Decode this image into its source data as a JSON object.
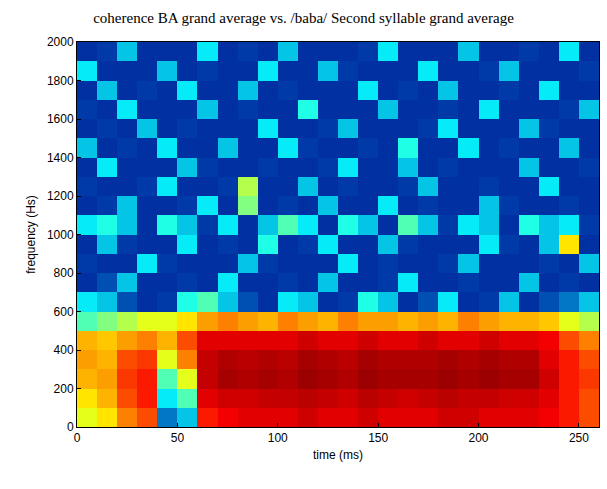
{
  "chart_data": {
    "type": "heatmap",
    "title": "coherence BA grand average vs. /baba/ Second syllable grand average",
    "x_label": "time (ms)",
    "y_label": "frequency (Hs)",
    "color": "Jet",
    "zlim": [
      0,
      1
    ],
    "xlim": [
      0,
      260
    ],
    "ylim": [
      0,
      2000
    ],
    "xticks": [
      0,
      50,
      100,
      150,
      200,
      250
    ],
    "yticks": [
      0,
      200,
      400,
      600,
      800,
      1000,
      1200,
      1400,
      1600,
      1800,
      2000
    ],
    "x": [
      5,
      15,
      25,
      35,
      45,
      55,
      65,
      75,
      85,
      95,
      105,
      115,
      125,
      135,
      145,
      155,
      165,
      175,
      185,
      195,
      205,
      215,
      225,
      235,
      245,
      255
    ],
    "y": [
      50,
      150,
      250,
      350,
      450,
      550,
      650,
      750,
      850,
      950,
      1050,
      1150,
      1250,
      1350,
      1450,
      1550,
      1650,
      1750,
      1850,
      1950
    ],
    "z": [
      [
        0.6,
        0.65,
        0.75,
        0.8,
        0.2,
        0.3,
        0.85,
        0.88,
        0.9,
        0.9,
        0.9,
        0.92,
        0.9,
        0.9,
        0.92,
        0.9,
        0.9,
        0.9,
        0.92,
        0.92,
        0.9,
        0.9,
        0.9,
        0.88,
        0.85,
        0.8
      ],
      [
        0.65,
        0.7,
        0.8,
        0.85,
        0.35,
        0.45,
        0.9,
        0.92,
        0.92,
        0.93,
        0.93,
        0.94,
        0.93,
        0.92,
        0.94,
        0.93,
        0.92,
        0.93,
        0.94,
        0.93,
        0.93,
        0.92,
        0.92,
        0.9,
        0.85,
        0.8
      ],
      [
        0.7,
        0.72,
        0.82,
        0.85,
        0.45,
        0.6,
        0.93,
        0.96,
        0.95,
        0.96,
        0.95,
        0.97,
        0.96,
        0.95,
        0.97,
        0.96,
        0.96,
        0.96,
        0.97,
        0.96,
        0.97,
        0.96,
        0.96,
        0.92,
        0.85,
        0.82
      ],
      [
        0.72,
        0.7,
        0.8,
        0.82,
        0.6,
        0.75,
        0.93,
        0.95,
        0.94,
        0.95,
        0.94,
        0.96,
        0.95,
        0.94,
        0.96,
        0.95,
        0.95,
        0.95,
        0.96,
        0.95,
        0.96,
        0.95,
        0.95,
        0.9,
        0.85,
        0.8
      ],
      [
        0.7,
        0.68,
        0.72,
        0.75,
        0.7,
        0.8,
        0.9,
        0.9,
        0.9,
        0.9,
        0.9,
        0.92,
        0.9,
        0.9,
        0.92,
        0.9,
        0.9,
        0.92,
        0.9,
        0.9,
        0.92,
        0.9,
        0.9,
        0.88,
        0.8,
        0.75
      ],
      [
        0.45,
        0.5,
        0.55,
        0.6,
        0.6,
        0.65,
        0.72,
        0.75,
        0.72,
        0.7,
        0.75,
        0.72,
        0.7,
        0.75,
        0.72,
        0.72,
        0.7,
        0.72,
        0.7,
        0.75,
        0.72,
        0.7,
        0.7,
        0.68,
        0.6,
        0.55
      ],
      [
        0.35,
        0.3,
        0.15,
        0.1,
        0.12,
        0.4,
        0.45,
        0.3,
        0.15,
        0.1,
        0.35,
        0.3,
        0.1,
        0.12,
        0.4,
        0.3,
        0.1,
        0.15,
        0.35,
        0.1,
        0.12,
        0.3,
        0.1,
        0.15,
        0.2,
        0.3
      ],
      [
        0.1,
        0.15,
        0.3,
        0.1,
        0.1,
        0.12,
        0.1,
        0.35,
        0.1,
        0.1,
        0.12,
        0.1,
        0.3,
        0.1,
        0.1,
        0.12,
        0.35,
        0.1,
        0.1,
        0.12,
        0.1,
        0.1,
        0.3,
        0.1,
        0.12,
        0.1
      ],
      [
        0.12,
        0.1,
        0.1,
        0.35,
        0.12,
        0.1,
        0.1,
        0.1,
        0.3,
        0.12,
        0.1,
        0.1,
        0.1,
        0.35,
        0.1,
        0.12,
        0.1,
        0.1,
        0.12,
        0.3,
        0.1,
        0.1,
        0.1,
        0.12,
        0.1,
        0.3
      ],
      [
        0.1,
        0.3,
        0.12,
        0.1,
        0.1,
        0.35,
        0.1,
        0.12,
        0.1,
        0.4,
        0.1,
        0.12,
        0.35,
        0.1,
        0.1,
        0.3,
        0.12,
        0.1,
        0.1,
        0.1,
        0.35,
        0.12,
        0.1,
        0.3,
        0.65,
        0.1
      ],
      [
        0.35,
        0.4,
        0.3,
        0.1,
        0.4,
        0.3,
        0.12,
        0.35,
        0.1,
        0.3,
        0.45,
        0.35,
        0.1,
        0.4,
        0.3,
        0.1,
        0.45,
        0.3,
        0.12,
        0.35,
        0.3,
        0.1,
        0.4,
        0.3,
        0.35,
        0.12
      ],
      [
        0.1,
        0.12,
        0.3,
        0.1,
        0.1,
        0.12,
        0.35,
        0.1,
        0.5,
        0.1,
        0.12,
        0.1,
        0.3,
        0.1,
        0.1,
        0.35,
        0.1,
        0.12,
        0.1,
        0.1,
        0.3,
        0.12,
        0.1,
        0.1,
        0.12,
        0.1
      ],
      [
        0.12,
        0.1,
        0.1,
        0.12,
        0.35,
        0.1,
        0.1,
        0.12,
        0.55,
        0.1,
        0.1,
        0.3,
        0.1,
        0.12,
        0.1,
        0.1,
        0.12,
        0.3,
        0.1,
        0.1,
        0.12,
        0.1,
        0.1,
        0.35,
        0.1,
        0.1
      ],
      [
        0.1,
        0.35,
        0.1,
        0.1,
        0.1,
        0.3,
        0.12,
        0.1,
        0.1,
        0.12,
        0.1,
        0.1,
        0.12,
        0.35,
        0.1,
        0.1,
        0.3,
        0.1,
        0.12,
        0.1,
        0.1,
        0.1,
        0.3,
        0.1,
        0.1,
        0.12
      ],
      [
        0.3,
        0.1,
        0.12,
        0.1,
        0.35,
        0.1,
        0.1,
        0.3,
        0.1,
        0.1,
        0.35,
        0.12,
        0.1,
        0.1,
        0.12,
        0.1,
        0.4,
        0.1,
        0.1,
        0.35,
        0.1,
        0.12,
        0.1,
        0.1,
        0.3,
        0.1
      ],
      [
        0.1,
        0.12,
        0.1,
        0.3,
        0.1,
        0.12,
        0.1,
        0.1,
        0.1,
        0.35,
        0.1,
        0.1,
        0.12,
        0.3,
        0.1,
        0.1,
        0.1,
        0.12,
        0.35,
        0.1,
        0.1,
        0.1,
        0.3,
        0.12,
        0.1,
        0.1
      ],
      [
        0.12,
        0.1,
        0.35,
        0.1,
        0.1,
        0.1,
        0.3,
        0.1,
        0.12,
        0.1,
        0.1,
        0.4,
        0.1,
        0.1,
        0.1,
        0.3,
        0.1,
        0.1,
        0.12,
        0.1,
        0.35,
        0.1,
        0.1,
        0.1,
        0.12,
        0.3
      ],
      [
        0.1,
        0.3,
        0.1,
        0.12,
        0.1,
        0.35,
        0.1,
        0.1,
        0.3,
        0.1,
        0.12,
        0.1,
        0.1,
        0.1,
        0.35,
        0.1,
        0.12,
        0.1,
        0.3,
        0.1,
        0.1,
        0.12,
        0.1,
        0.35,
        0.1,
        0.1
      ],
      [
        0.35,
        0.1,
        0.1,
        0.1,
        0.3,
        0.1,
        0.12,
        0.1,
        0.1,
        0.35,
        0.1,
        0.1,
        0.3,
        0.12,
        0.1,
        0.1,
        0.1,
        0.35,
        0.1,
        0.1,
        0.12,
        0.3,
        0.1,
        0.1,
        0.1,
        0.12
      ],
      [
        0.1,
        0.12,
        0.3,
        0.1,
        0.1,
        0.1,
        0.35,
        0.1,
        0.12,
        0.1,
        0.3,
        0.1,
        0.1,
        0.1,
        0.12,
        0.35,
        0.1,
        0.1,
        0.1,
        0.3,
        0.1,
        0.1,
        0.12,
        0.1,
        0.35,
        0.1
      ]
    ]
  }
}
